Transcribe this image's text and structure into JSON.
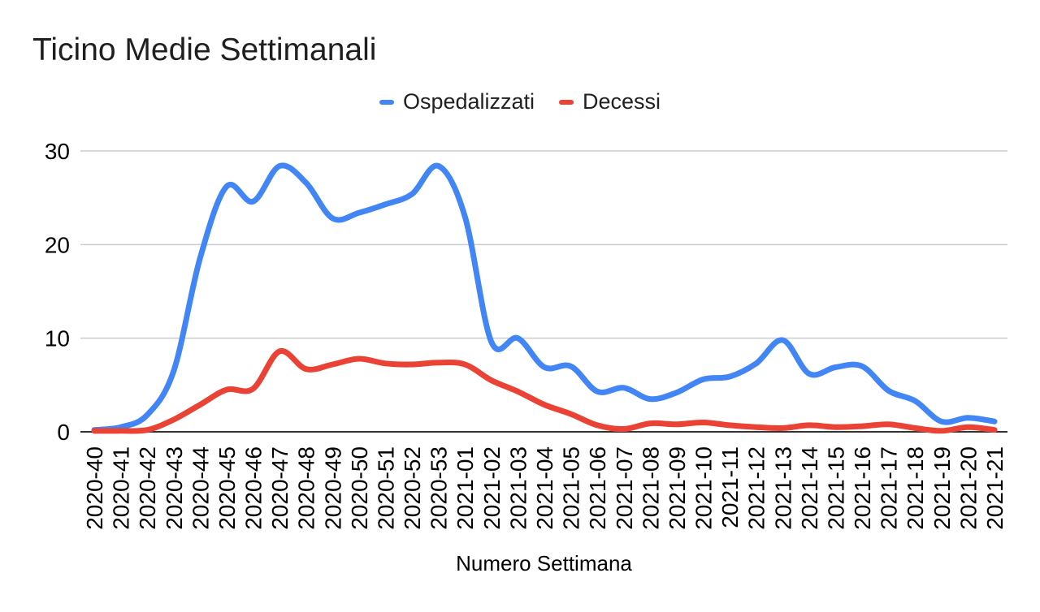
{
  "chart_data": {
    "type": "line",
    "smooth": true,
    "title": "Ticino Medie Settimanali",
    "xlabel": "Numero Settimana",
    "ylabel": "",
    "ylim": [
      0,
      30
    ],
    "yticks": [
      0,
      10,
      20,
      30
    ],
    "grid": "horizontal",
    "legend_position": "top-center",
    "categories": [
      "2020-40",
      "2020-41",
      "2020-42",
      "2020-43",
      "2020-44",
      "2020-45",
      "2020-46",
      "2020-47",
      "2020-48",
      "2020-49",
      "2020-50",
      "2020-51",
      "2020-52",
      "2020-53",
      "2021-01",
      "2021-02",
      "2021-03",
      "2021-04",
      "2021-05",
      "2021-06",
      "2021-07",
      "2021-08",
      "2021-09",
      "2021-10",
      "2021-11",
      "2021-12",
      "2021-13",
      "2021-14",
      "2021-15",
      "2021-16",
      "2021-17",
      "2021-18",
      "2021-19",
      "2021-20",
      "2021-21"
    ],
    "series": [
      {
        "name": "Ospedalizzati",
        "color": "#4285f4",
        "values": [
          0.2,
          0.5,
          1.8,
          6.5,
          18.6,
          26.2,
          24.6,
          28.4,
          26.6,
          22.8,
          23.4,
          24.3,
          25.4,
          28.4,
          23.0,
          9.6,
          10.0,
          6.9,
          7.0,
          4.3,
          4.7,
          3.5,
          4.2,
          5.6,
          5.9,
          7.3,
          9.8,
          6.2,
          6.9,
          7.0,
          4.4,
          3.3,
          1.1,
          1.5,
          1.1
        ]
      },
      {
        "name": "Decessi",
        "color": "#ea4335",
        "values": [
          0.1,
          0.1,
          0.2,
          1.3,
          2.9,
          4.5,
          4.6,
          8.6,
          6.7,
          7.2,
          7.8,
          7.3,
          7.2,
          7.4,
          7.2,
          5.5,
          4.3,
          2.9,
          1.9,
          0.7,
          0.3,
          0.9,
          0.8,
          1.0,
          0.7,
          0.5,
          0.4,
          0.7,
          0.5,
          0.6,
          0.8,
          0.4,
          0.1,
          0.5,
          0.2
        ]
      }
    ],
    "axis_color": "#333333",
    "gridline_color": "#cccccc",
    "tick_label_color": "#000000"
  }
}
